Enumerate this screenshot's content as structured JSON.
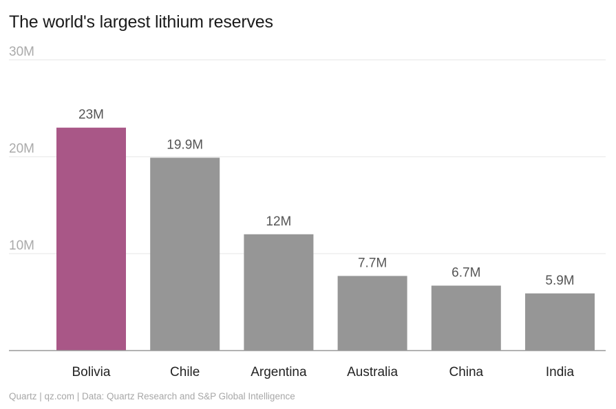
{
  "title": "The world's largest lithium reserves",
  "source": "Quartz | qz.com | Data: Quartz Research and S&P Global Intelligence",
  "colors": {
    "highlight": "#a95787",
    "bar": "#969696",
    "grid": "#e6e6e6",
    "baseline": "#999999"
  },
  "chart_data": {
    "type": "bar",
    "categories": [
      "Bolivia",
      "Chile",
      "Argentina",
      "Australia",
      "China",
      "India"
    ],
    "values": [
      23,
      19.9,
      12,
      7.7,
      6.7,
      5.9
    ],
    "value_labels": [
      "23M",
      "19.9M",
      "12M",
      "7.7M",
      "6.7M",
      "5.9M"
    ],
    "highlight_index": 0,
    "ylim": [
      0,
      30
    ],
    "yticks": [
      {
        "value": 10,
        "label": "10M"
      },
      {
        "value": 20,
        "label": "20M"
      },
      {
        "value": 30,
        "label": "30M"
      }
    ],
    "grid": true
  }
}
